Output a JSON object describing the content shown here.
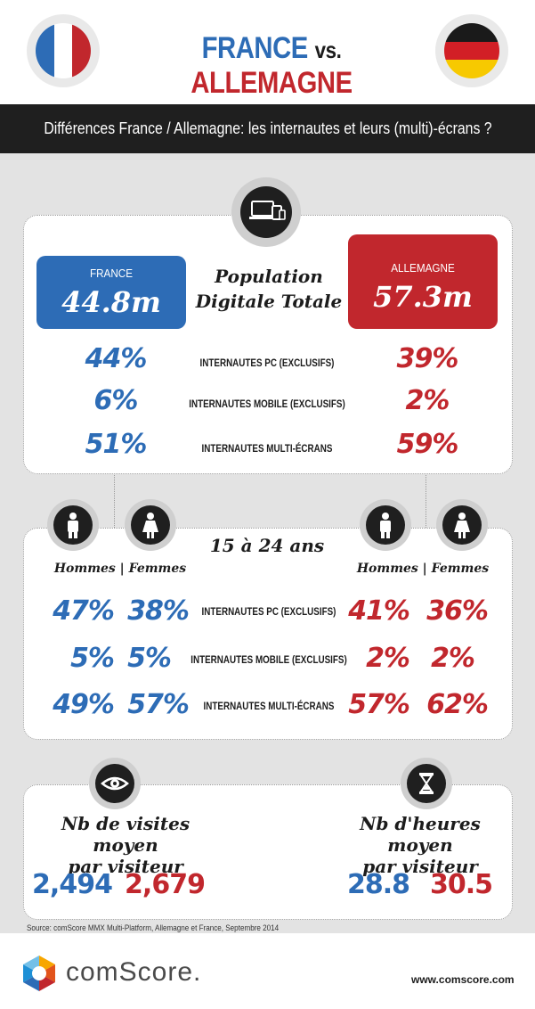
{
  "header": {
    "title_left": "FRANCE",
    "title_vs": "vs.",
    "title_right": "ALLEMAGNE",
    "left_flag_icon": "france-flag-icon",
    "right_flag_icon": "germany-flag-icon"
  },
  "subtitle": "Différences France / Allemagne:  les internautes et leurs (multi)-écrans ?",
  "colors": {
    "france": "#2d6cb6",
    "germany": "#c1272d",
    "dark": "#1f1f1f"
  },
  "population": {
    "icon": "devices-icon",
    "heading_line1": "Population",
    "heading_line2": "Digitale Totale",
    "france_label": "FRANCE",
    "france_value": "44.8m",
    "germany_label": "ALLEMAGNE",
    "germany_value": "57.3m",
    "rows": [
      {
        "label": "INTERNAUTES PC (EXCLUSIFS)",
        "fr": "44%",
        "de": "39%"
      },
      {
        "label": "INTERNAUTES MOBILE (EXCLUSIFS)",
        "fr": "6%",
        "de": "2%"
      },
      {
        "label": "INTERNAUTES MULTI-ÉCRANS",
        "fr": "51%",
        "de": "59%"
      }
    ]
  },
  "youth": {
    "heading": "15 à 24 ans",
    "gender_label_fr": "Hommes | Femmes",
    "gender_label_de": "Hommes | Femmes",
    "icons": [
      "male-icon",
      "female-icon",
      "male-icon",
      "female-icon"
    ],
    "rows": [
      {
        "label": "INTERNAUTES PC (EXCLUSIFS)",
        "fr_m": "47%",
        "fr_f": "38%",
        "de_m": "41%",
        "de_f": "36%"
      },
      {
        "label": "INTERNAUTES MOBILE (EXCLUSIFS)",
        "fr_m": "5%",
        "fr_f": "5%",
        "de_m": "2%",
        "de_f": "2%"
      },
      {
        "label": "INTERNAUTES MULTI-ÉCRANS",
        "fr_m": "49%",
        "fr_f": "57%",
        "de_m": "57%",
        "de_f": "62%"
      }
    ]
  },
  "visits": {
    "icon": "eye-icon",
    "heading_line1": "Nb de visites moyen",
    "heading_line2": "par visiteur",
    "fr": "2,494",
    "de": "2,679"
  },
  "hours": {
    "icon": "hourglass-icon",
    "heading_line1": "Nb d'heures moyen",
    "heading_line2": "par visiteur",
    "fr": "28.8",
    "de": "30.5"
  },
  "source": "Source: comScore MMX Multi-Platform, Allemagne et France, Septembre 2014",
  "footer": {
    "brand": "comScore.",
    "logo_icon": "comscore-logo-icon",
    "url": "www.comscore.com"
  }
}
